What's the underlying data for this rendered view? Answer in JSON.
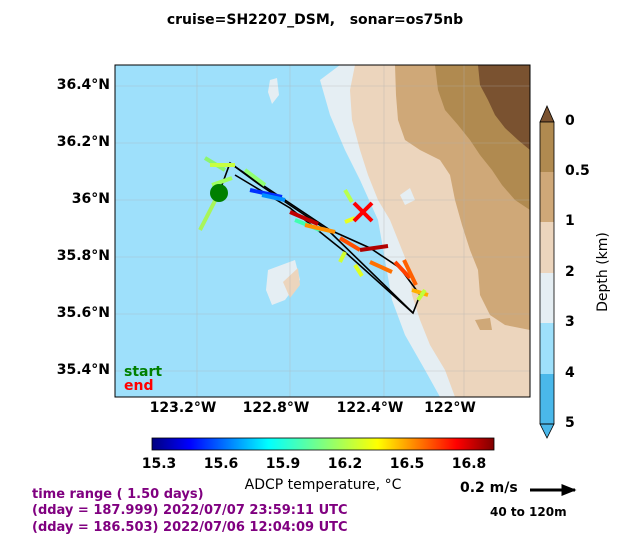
{
  "title": "cruise=SH2207_DSM,   sonar=os75nb",
  "map": {
    "lat_ticks": [
      "36.4°N",
      "36.2°N",
      "36°N",
      "35.8°N",
      "35.6°N",
      "35.4°N"
    ],
    "lon_ticks": [
      "123.2°W",
      "122.8°W",
      "122.4°W",
      "122°W"
    ],
    "legend_start": "start",
    "legend_end": "end",
    "start_color": "#008000",
    "end_color": "#ff0000"
  },
  "depth_colorbar": {
    "label": "Depth (km)",
    "ticks": [
      "0",
      "0.5",
      "1",
      "2",
      "3",
      "4",
      "5"
    ],
    "colors": [
      "#7a5230",
      "#b08a50",
      "#cfa878",
      "#ecd5bd",
      "#e5eef3",
      "#9ee0fb",
      "#4ab8ea"
    ]
  },
  "temp_colorbar": {
    "label": "ADCP temperature, °C",
    "ticks": [
      "15.3",
      "15.6",
      "15.9",
      "16.2",
      "16.5",
      "16.8"
    ],
    "colormap": "jet"
  },
  "time_info": {
    "range": "time range ( 1.50 days)",
    "end": "(dday = 187.999) 2022/07/07 23:59:11 UTC",
    "start": "(dday = 186.503) 2022/07/06 12:04:09 UTC"
  },
  "scale": {
    "speed": "0.2 m/s",
    "depth_range": "40 to 120m"
  }
}
